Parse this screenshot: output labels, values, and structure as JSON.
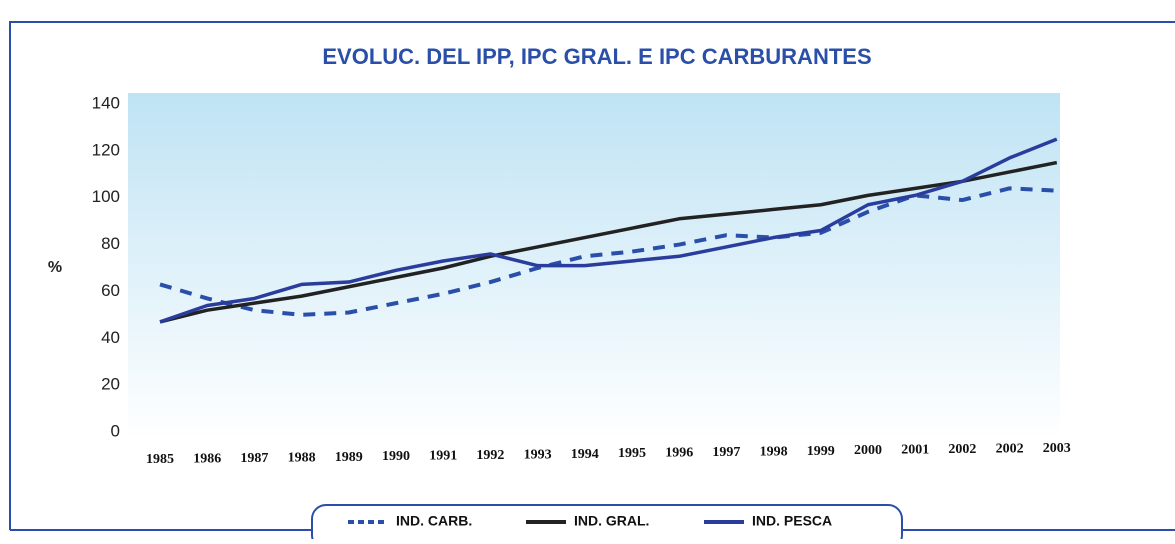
{
  "chart_data": {
    "type": "line",
    "title": "EVOLUC. DEL IPP, IPC GRAL. E IPC CARBURANTES",
    "y_label": "%",
    "categories": [
      "1985",
      "1986",
      "1987",
      "1988",
      "1989",
      "1990",
      "1991",
      "1992",
      "1993",
      "1994",
      "1995",
      "1996",
      "1997",
      "1998",
      "1999",
      "2000",
      "2001",
      "2002",
      "2002",
      "2003"
    ],
    "series": [
      {
        "name": "IND. CARB.",
        "color": "#2a4fa8",
        "dashed": true,
        "values": [
          63,
          57,
          52,
          50,
          51,
          55,
          59,
          64,
          70,
          75,
          77,
          80,
          84,
          83,
          85,
          94,
          101,
          99,
          104,
          103
        ]
      },
      {
        "name": "IND. GRAL.",
        "color": "#222222",
        "dashed": false,
        "values": [
          47,
          52,
          55,
          58,
          62,
          66,
          70,
          75,
          79,
          83,
          87,
          91,
          93,
          95,
          97,
          101,
          104,
          107,
          111,
          115
        ]
      },
      {
        "name": "IND. PESCA",
        "color": "#2b3d9c",
        "dashed": false,
        "values": [
          47,
          54,
          57,
          63,
          64,
          69,
          73,
          76,
          71,
          71,
          73,
          75,
          79,
          83,
          86,
          97,
          101,
          107,
          117,
          125
        ]
      }
    ],
    "ylim": [
      0,
      140
    ],
    "yticks": [
      0,
      20,
      40,
      60,
      80,
      100,
      120,
      140
    ],
    "grid": false,
    "legend": "bottom"
  }
}
